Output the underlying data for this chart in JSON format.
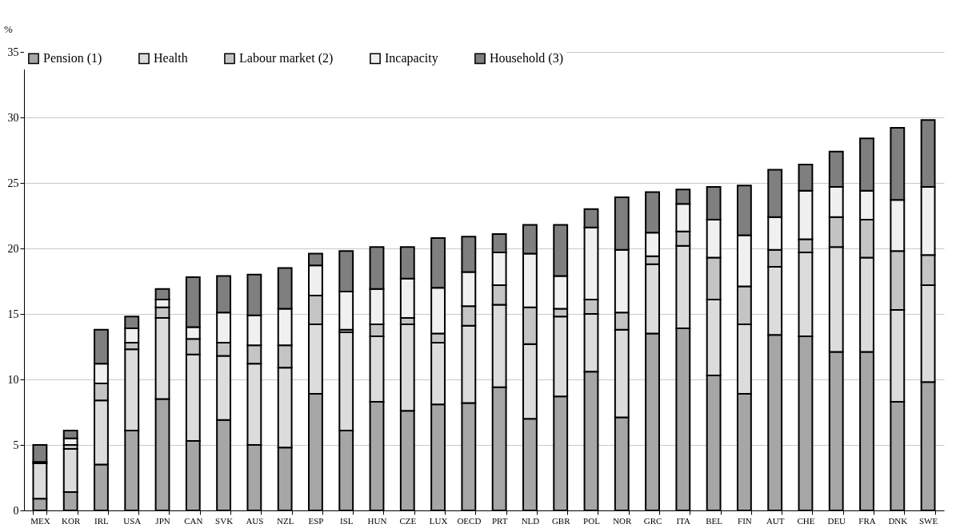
{
  "chart_data": {
    "type": "bar",
    "stacked": true,
    "ylabel": "%",
    "categories": [
      "MEX",
      "KOR",
      "IRL",
      "USA",
      "JPN",
      "CAN",
      "SVK",
      "AUS",
      "NZL",
      "ESP",
      "ISL",
      "HUN",
      "CZE",
      "LUX",
      "OECD",
      "PRT",
      "NLD",
      "GBR",
      "POL",
      "NOR",
      "GRC",
      "ITA",
      "BEL",
      "FIN",
      "AUT",
      "CHE",
      "DEU",
      "FRA",
      "DNK",
      "SWE"
    ],
    "series": [
      {
        "name": "Pension (1)",
        "color": "#a6a6a6",
        "values": [
          0.9,
          1.4,
          3.5,
          6.1,
          8.5,
          5.3,
          6.9,
          5.0,
          4.8,
          8.9,
          6.1,
          8.3,
          7.6,
          8.1,
          8.2,
          9.4,
          7.0,
          8.7,
          10.6,
          7.1,
          13.5,
          13.9,
          10.3,
          8.9,
          13.4,
          13.3,
          12.1,
          12.1,
          8.3,
          9.8
        ]
      },
      {
        "name": "Health",
        "color": "#dcdcdc",
        "values": [
          2.7,
          3.3,
          4.9,
          6.2,
          6.2,
          6.6,
          4.9,
          6.2,
          6.1,
          5.3,
          7.5,
          5.0,
          6.6,
          4.7,
          5.9,
          6.3,
          5.7,
          6.1,
          4.4,
          6.7,
          5.3,
          6.3,
          5.8,
          5.3,
          5.2,
          6.4,
          8.0,
          7.2,
          7.0,
          7.4
        ]
      },
      {
        "name": "Labour market (2)",
        "color": "#c4c4c4",
        "values": [
          0.1,
          0.3,
          1.3,
          0.5,
          0.8,
          1.2,
          1.0,
          1.4,
          1.7,
          2.2,
          0.2,
          0.9,
          0.5,
          0.7,
          1.5,
          1.5,
          2.8,
          0.6,
          1.1,
          1.3,
          0.6,
          1.1,
          3.2,
          2.9,
          1.3,
          1.0,
          2.3,
          2.9,
          4.5,
          2.3
        ]
      },
      {
        "name": "Incapacity",
        "color": "#f0f0f0",
        "values": [
          null,
          0.5,
          1.5,
          1.1,
          0.6,
          0.9,
          2.3,
          2.3,
          2.8,
          2.3,
          2.9,
          2.7,
          3.0,
          3.5,
          2.6,
          2.5,
          4.1,
          2.5,
          5.5,
          4.8,
          1.8,
          2.1,
          2.9,
          3.9,
          2.5,
          3.7,
          2.3,
          2.2,
          3.9,
          5.2
        ]
      },
      {
        "name": "Household (3)",
        "color": "#7f7f7f",
        "values": [
          1.3,
          0.6,
          2.6,
          0.9,
          0.8,
          3.8,
          2.8,
          3.1,
          3.1,
          0.9,
          3.1,
          3.2,
          2.4,
          3.8,
          2.7,
          1.4,
          2.2,
          3.9,
          1.4,
          4.0,
          3.1,
          1.1,
          2.5,
          3.8,
          3.6,
          2.0,
          2.7,
          4.0,
          5.5,
          5.1
        ]
      }
    ],
    "ylim": [
      0,
      35
    ],
    "yticks": [
      0,
      5,
      10,
      15,
      20,
      25,
      30,
      35
    ],
    "grid": "y",
    "legend": "top"
  }
}
